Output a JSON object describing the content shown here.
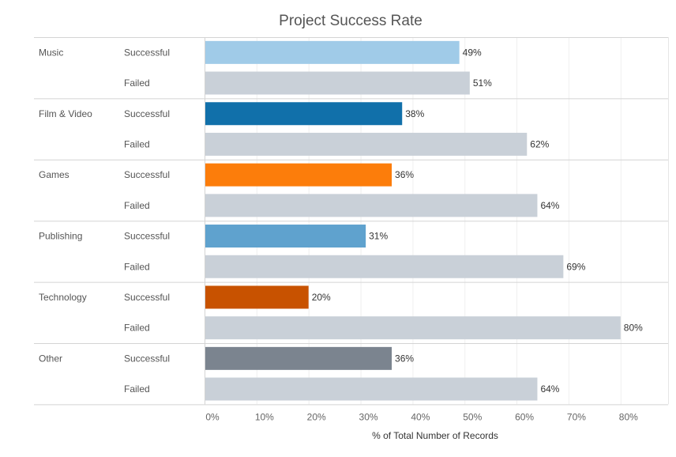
{
  "chart_data": {
    "type": "bar",
    "orientation": "horizontal",
    "title": "Project Success Rate",
    "xlabel": "% of Total Number of Records",
    "ylabel": "",
    "xlim": [
      0,
      88
    ],
    "x_ticks": [
      "0%",
      "10%",
      "20%",
      "30%",
      "40%",
      "50%",
      "60%",
      "70%",
      "80%"
    ],
    "x_tick_values": [
      0,
      10,
      20,
      30,
      40,
      50,
      60,
      70,
      80
    ],
    "grid": true,
    "legend": "none",
    "groups": [
      {
        "category": "Music",
        "bars": [
          {
            "label": "Successful",
            "value": 49,
            "display": "49%",
            "color": "#A0CBE8"
          },
          {
            "label": "Failed",
            "value": 51,
            "display": "51%",
            "color": "#C9D0D8"
          }
        ]
      },
      {
        "category": "Film & Video",
        "bars": [
          {
            "label": "Successful",
            "value": 38,
            "display": "38%",
            "color": "#1170AA"
          },
          {
            "label": "Failed",
            "value": 62,
            "display": "62%",
            "color": "#C9D0D8"
          }
        ]
      },
      {
        "category": "Games",
        "bars": [
          {
            "label": "Successful",
            "value": 36,
            "display": "36%",
            "color": "#FC7D0B"
          },
          {
            "label": "Failed",
            "value": 64,
            "display": "64%",
            "color": "#C9D0D8"
          }
        ]
      },
      {
        "category": "Publishing",
        "bars": [
          {
            "label": "Successful",
            "value": 31,
            "display": "31%",
            "color": "#5FA2CE"
          },
          {
            "label": "Failed",
            "value": 69,
            "display": "69%",
            "color": "#C9D0D8"
          }
        ]
      },
      {
        "category": "Technology",
        "bars": [
          {
            "label": "Successful",
            "value": 20,
            "display": "20%",
            "color": "#C85200"
          },
          {
            "label": "Failed",
            "value": 80,
            "display": "80%",
            "color": "#C9D0D8"
          }
        ]
      },
      {
        "category": "Other",
        "bars": [
          {
            "label": "Successful",
            "value": 36,
            "display": "36%",
            "color": "#7B848F"
          },
          {
            "label": "Failed",
            "value": 64,
            "display": "64%",
            "color": "#C9D0D8"
          }
        ]
      }
    ]
  }
}
